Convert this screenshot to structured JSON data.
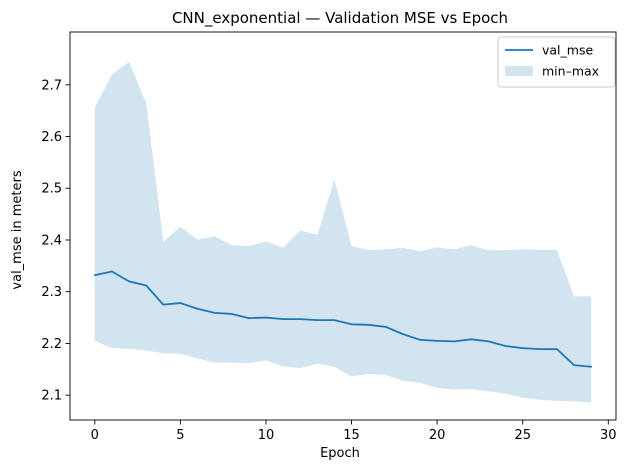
{
  "chart_data": {
    "type": "line",
    "title": "CNN_exponential — Validation MSE vs Epoch",
    "xlabel": "Epoch",
    "ylabel": "val_mse in meters",
    "xlim": [
      -1.45,
      30.45
    ],
    "ylim": [
      2.052,
      2.802
    ],
    "xticks": [
      0,
      5,
      10,
      15,
      20,
      25,
      30
    ],
    "yticks": [
      2.1,
      2.2,
      2.3,
      2.4,
      2.5,
      2.6,
      2.7
    ],
    "grid": false,
    "legend_position": "top-right",
    "colors": {
      "line": "#1f77b4",
      "band": "#1f77b4"
    },
    "x": [
      0,
      1,
      2,
      3,
      4,
      5,
      6,
      7,
      8,
      9,
      10,
      11,
      12,
      13,
      14,
      15,
      16,
      17,
      18,
      19,
      20,
      21,
      22,
      23,
      24,
      25,
      26,
      27,
      28,
      29
    ],
    "series": [
      {
        "name": "val_mse",
        "kind": "line",
        "values": [
          2.332,
          2.339,
          2.32,
          2.312,
          2.275,
          2.278,
          2.267,
          2.259,
          2.257,
          2.249,
          2.25,
          2.247,
          2.247,
          2.245,
          2.245,
          2.237,
          2.236,
          2.232,
          2.218,
          2.207,
          2.205,
          2.204,
          2.208,
          2.204,
          2.195,
          2.191,
          2.189,
          2.189,
          2.158,
          2.155
        ]
      },
      {
        "name": "min–max",
        "kind": "band",
        "upper": [
          2.656,
          2.72,
          2.744,
          2.665,
          2.397,
          2.425,
          2.401,
          2.407,
          2.39,
          2.388,
          2.397,
          2.385,
          2.418,
          2.41,
          2.517,
          2.388,
          2.38,
          2.382,
          2.385,
          2.378,
          2.386,
          2.382,
          2.39,
          2.38,
          2.38,
          2.382,
          2.381,
          2.381,
          2.291,
          2.291
        ],
        "lower": [
          2.205,
          2.191,
          2.19,
          2.186,
          2.181,
          2.18,
          2.171,
          2.163,
          2.163,
          2.162,
          2.167,
          2.156,
          2.152,
          2.161,
          2.155,
          2.136,
          2.141,
          2.139,
          2.128,
          2.124,
          2.114,
          2.111,
          2.112,
          2.107,
          2.103,
          2.095,
          2.091,
          2.089,
          2.088,
          2.086
        ]
      }
    ]
  }
}
